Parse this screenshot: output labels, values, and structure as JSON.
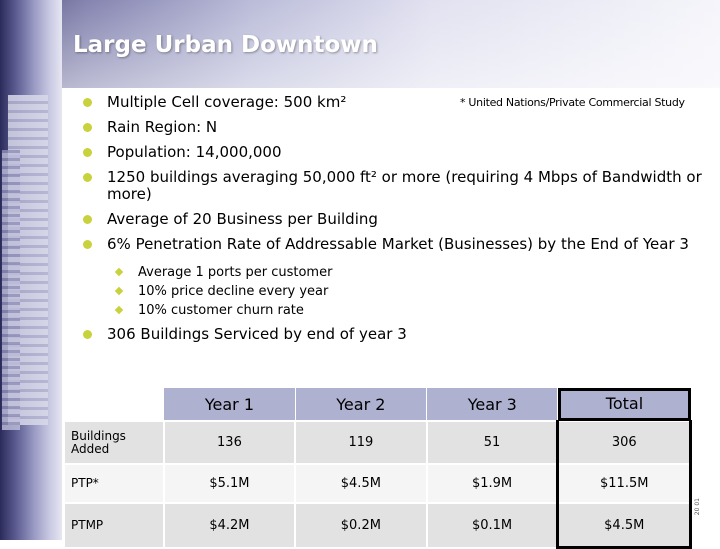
{
  "slide": {
    "title": "Large Urban Downtown",
    "note": "* United Nations/Private Commercial Study"
  },
  "bullets": [
    "Multiple Cell coverage: 500 km²",
    "Rain Region: N",
    "Population: 14,000,000",
    "1250 buildings averaging 50,000 ft² or more (requiring 4 Mbps of Bandwidth or more)",
    "Average of 20 Business per Building",
    "6% Penetration Rate of Addressable Market (Businesses) by the End of Year 3"
  ],
  "sub_bullets": [
    "Average 1 ports per customer",
    "10% price decline every year",
    "10% customer churn rate"
  ],
  "last_bullet": "306 Buildings Serviced by end of year 3",
  "table": {
    "headers": [
      "Year 1",
      "Year 2",
      "Year 3",
      "Total"
    ],
    "rows": [
      {
        "label": "Buildings Added",
        "cells": [
          "136",
          "119",
          "51",
          "306"
        ]
      },
      {
        "label": "PTP*",
        "cells": [
          "$5.1M",
          "$4.5M",
          "$1.9M",
          "$11.5M"
        ]
      },
      {
        "label": "PTMP",
        "cells": [
          "$4.2M",
          "$0.2M",
          "$0.1M",
          "$4.5M"
        ]
      }
    ]
  },
  "colors": {
    "bullet": "#c8d23c",
    "header_fill": "#aeb1cf",
    "title_text": "#ffffff"
  },
  "page_mark": "20 01"
}
